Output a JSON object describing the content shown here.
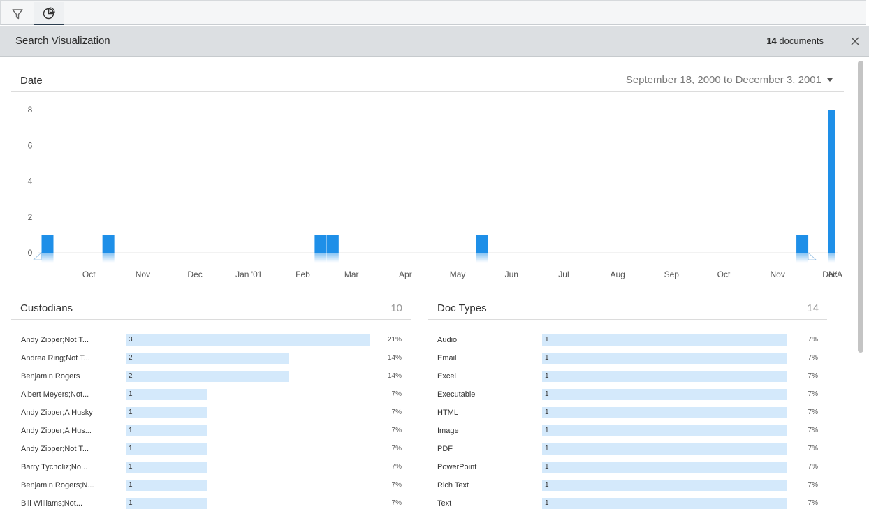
{
  "toolbar": {
    "filter_icon": "filter-icon",
    "viz_icon": "pie-chart-icon"
  },
  "header": {
    "title": "Search Visualization",
    "doc_count": "14",
    "doc_count_suffix": " documents",
    "close_icon": "close-icon"
  },
  "date_section": {
    "title": "Date",
    "range": "September 18, 2000 to December 3, 2001"
  },
  "chart_data": {
    "type": "bar",
    "categories": [
      "Oct",
      "Nov",
      "Dec",
      "Jan '01",
      "Feb",
      "Mar",
      "Apr",
      "May",
      "Jun",
      "Jul",
      "Aug",
      "Sep",
      "Oct",
      "Nov",
      "Dec",
      "N/A"
    ],
    "bars": [
      {
        "x": "2000-09-18",
        "value": 1
      },
      {
        "x": "2000-10-23",
        "value": 1
      },
      {
        "x": "2001-02-22",
        "value": 1
      },
      {
        "x": "2001-03-01",
        "value": 1
      },
      {
        "x": "2001-05-26",
        "value": 1
      },
      {
        "x": "2001-11-26",
        "value": 1
      },
      {
        "x": "N/A",
        "value": 8
      }
    ],
    "yticks": [
      0,
      2,
      4,
      6,
      8
    ],
    "ylim": [
      0,
      8
    ],
    "bar_color": "#1e8fe8"
  },
  "custodians": {
    "title": "Custodians",
    "count": "10",
    "items": [
      {
        "label": "Andy Zipper;Not T...",
        "value": "3",
        "pct": "21%",
        "frac": 1.0
      },
      {
        "label": "Andrea Ring;Not T...",
        "value": "2",
        "pct": "14%",
        "frac": 0.667
      },
      {
        "label": "Benjamin Rogers",
        "value": "2",
        "pct": "14%",
        "frac": 0.667
      },
      {
        "label": "Albert Meyers;Not...",
        "value": "1",
        "pct": "7%",
        "frac": 0.333
      },
      {
        "label": "Andy Zipper;A Husky",
        "value": "1",
        "pct": "7%",
        "frac": 0.333
      },
      {
        "label": "Andy Zipper;A Hus...",
        "value": "1",
        "pct": "7%",
        "frac": 0.333
      },
      {
        "label": "Andy Zipper;Not T...",
        "value": "1",
        "pct": "7%",
        "frac": 0.333
      },
      {
        "label": "Barry Tycholiz;No...",
        "value": "1",
        "pct": "7%",
        "frac": 0.333
      },
      {
        "label": "Benjamin Rogers;N...",
        "value": "1",
        "pct": "7%",
        "frac": 0.333
      },
      {
        "label": "Bill Williams;Not...",
        "value": "1",
        "pct": "7%",
        "frac": 0.333
      }
    ]
  },
  "doctypes": {
    "title": "Doc Types",
    "count": "14",
    "items": [
      {
        "label": "Audio",
        "value": "1",
        "pct": "7%",
        "frac": 1.0
      },
      {
        "label": "Email",
        "value": "1",
        "pct": "7%",
        "frac": 1.0
      },
      {
        "label": "Excel",
        "value": "1",
        "pct": "7%",
        "frac": 1.0
      },
      {
        "label": "Executable",
        "value": "1",
        "pct": "7%",
        "frac": 1.0
      },
      {
        "label": "HTML",
        "value": "1",
        "pct": "7%",
        "frac": 1.0
      },
      {
        "label": "Image",
        "value": "1",
        "pct": "7%",
        "frac": 1.0
      },
      {
        "label": "PDF",
        "value": "1",
        "pct": "7%",
        "frac": 1.0
      },
      {
        "label": "PowerPoint",
        "value": "1",
        "pct": "7%",
        "frac": 1.0
      },
      {
        "label": "Rich Text",
        "value": "1",
        "pct": "7%",
        "frac": 1.0
      },
      {
        "label": "Text",
        "value": "1",
        "pct": "7%",
        "frac": 1.0
      }
    ]
  }
}
